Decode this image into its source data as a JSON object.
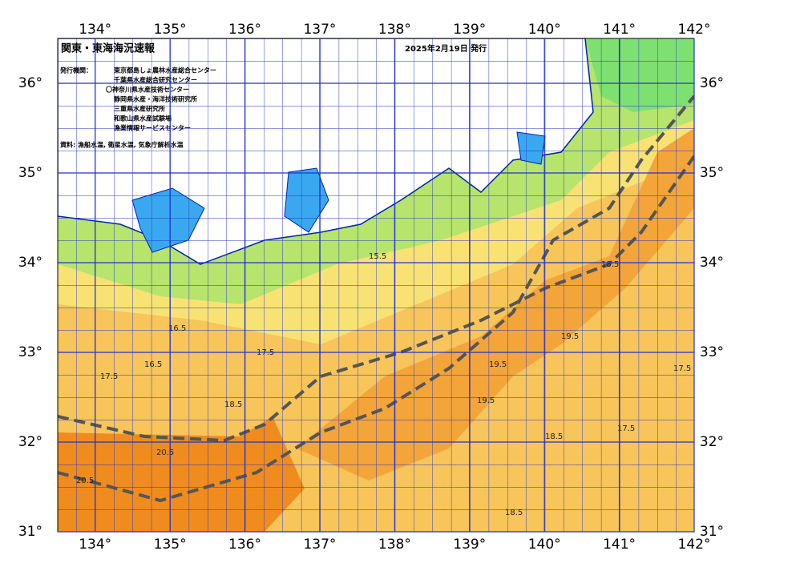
{
  "header": {
    "title": "関東・東海海況速報",
    "date": "2025年2月19日 発行",
    "issuer_label": "発行機関：",
    "issuers": [
      "東京都島しょ農林水産総合センター",
      "千葉県水産総合研究センター",
      "〇神奈川県水産技術センター",
      "静岡県水産・海洋技術研究所",
      "三重県水産研究所",
      "和歌山県水産試験場",
      "漁業情報サービスセンター"
    ],
    "source": "資料: 漁船水温, 衛星水温, 気象庁解析水温"
  },
  "map": {
    "lonlim": [
      133.5,
      142
    ],
    "latlim": [
      31,
      36.5
    ],
    "lonticks": [
      {
        "value": 134,
        "label": "134°"
      },
      {
        "value": 135,
        "label": "135°"
      },
      {
        "value": 136,
        "label": "136°"
      },
      {
        "value": 137,
        "label": "137°"
      },
      {
        "value": 138,
        "label": "138°"
      },
      {
        "value": 139,
        "label": "139°"
      },
      {
        "value": 140,
        "label": "140°"
      },
      {
        "value": 141,
        "label": "141°"
      },
      {
        "value": 142,
        "label": "142°"
      }
    ],
    "latticks": [
      {
        "value": 31,
        "label": "31°"
      },
      {
        "value": 32,
        "label": "32°"
      },
      {
        "value": 33,
        "label": "33°"
      },
      {
        "value": 34,
        "label": "34°"
      },
      {
        "value": 35,
        "label": "35°"
      },
      {
        "value": 36,
        "label": "36°"
      }
    ],
    "contour_labels": [
      "16.5",
      "16.5",
      "17.5",
      "17.5",
      "18.5",
      "18.5",
      "19.5",
      "19.5",
      "20.5",
      "20.5",
      "18.5",
      "17.5",
      "15.5",
      "18.5",
      "19.5",
      "17.5"
    ]
  }
}
